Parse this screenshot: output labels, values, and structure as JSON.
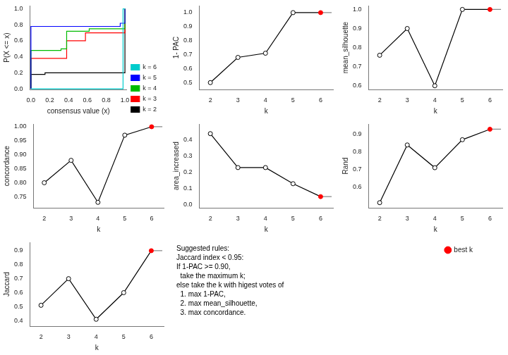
{
  "chart_data": [
    {
      "type": "line",
      "xlabel": "consensus value (x)",
      "ylabel": "P(X <= x)",
      "xlim": [
        -0.01,
        1.02
      ],
      "xticks": [
        {
          "value": 0.0,
          "label": "0.0"
        },
        0.2,
        0.4,
        0.6,
        0.8,
        {
          "value": 1.0,
          "label": "1.0"
        }
      ],
      "ylim": [
        -0.01,
        1.04
      ],
      "yticks": [
        {
          "value": 0.0,
          "label": "0.0"
        },
        0.2,
        0.4,
        0.6,
        0.8,
        {
          "value": 1.0,
          "label": "1.0"
        }
      ],
      "grid": false,
      "legend": "lower right",
      "series": [
        {
          "name": "k = 2",
          "color": "#000000",
          "line_style": "step",
          "marker": "none",
          "x": [
            0.0,
            0.0,
            0.15,
            0.15,
            1.0,
            1.0
          ],
          "values": [
            0.0,
            0.18,
            0.18,
            0.2,
            0.2,
            1.0
          ]
        },
        {
          "name": "k = 3",
          "color": "#FF0000",
          "line_style": "step",
          "marker": "none",
          "x": [
            0.0,
            0.0,
            0.38,
            0.38,
            0.58,
            0.58,
            1.0,
            1.0
          ],
          "values": [
            0.0,
            0.38,
            0.38,
            0.6,
            0.6,
            0.7,
            0.7,
            1.0
          ]
        },
        {
          "name": "k = 4",
          "color": "#00BB00",
          "line_style": "step",
          "marker": "none",
          "x": [
            0.0,
            0.0,
            0.32,
            0.32,
            0.38,
            0.38,
            0.62,
            0.62,
            1.0,
            1.0
          ],
          "values": [
            0.0,
            0.48,
            0.48,
            0.5,
            0.5,
            0.72,
            0.72,
            0.75,
            0.75,
            1.0
          ]
        },
        {
          "name": "k = 5",
          "color": "#0000FF",
          "line_style": "step",
          "marker": "none",
          "x": [
            0.0,
            0.0,
            0.0,
            0.95,
            0.95,
            1.0,
            1.0,
            1.0
          ],
          "values": [
            0.0,
            0.0,
            0.78,
            0.78,
            0.82,
            0.82,
            1.0,
            1.0
          ]
        },
        {
          "name": "k = 6",
          "color": "#00CCCC",
          "line_style": "step",
          "marker": "none",
          "x": [
            0.0,
            0.0,
            0.0,
            0.98,
            0.98,
            1.0,
            1.0,
            1.0
          ],
          "values": [
            0.0,
            0.0,
            0.0,
            0.0,
            1.0,
            1.0,
            1.0,
            1.0
          ]
        }
      ]
    },
    {
      "type": "line",
      "xlabel": "k",
      "ylabel": "1- PAC",
      "xlim": [
        1.6,
        6.45
      ],
      "xticks": [
        2,
        3,
        4,
        5,
        6
      ],
      "ylim": [
        0.45,
        1.05
      ],
      "yticks": [
        0.5,
        0.6,
        0.7,
        0.8,
        0.9,
        {
          "value": 1.0,
          "label": "1.0"
        }
      ],
      "grid": false,
      "series": [
        {
          "color": "#888888",
          "marker": "none",
          "x": [
            6,
            6.4
          ],
          "values": [
            1.0,
            1.0
          ]
        },
        {
          "color": "#000000",
          "marker": "circle",
          "colors": [
            "#000000",
            "#000000",
            "#000000",
            "#000000",
            "#FF0000"
          ],
          "x": [
            2,
            3,
            4,
            5,
            6
          ],
          "values": [
            0.5,
            0.68,
            0.71,
            1.0,
            1.0
          ]
        }
      ]
    },
    {
      "type": "line",
      "xlabel": "k",
      "ylabel": "mean_silhouette",
      "xlim": [
        1.6,
        6.45
      ],
      "xticks": [
        2,
        3,
        4,
        5,
        6
      ],
      "ylim": [
        0.58,
        1.02
      ],
      "yticks": [
        0.6,
        0.7,
        0.8,
        0.9,
        {
          "value": 1.0,
          "label": "1.0"
        }
      ],
      "grid": false,
      "series": [
        {
          "color": "#888888",
          "marker": "none",
          "x": [
            6,
            6.4
          ],
          "values": [
            1.0,
            1.0
          ]
        },
        {
          "color": "#000000",
          "marker": "circle",
          "colors": [
            "#000000",
            "#000000",
            "#000000",
            "#000000",
            "#FF0000"
          ],
          "x": [
            2,
            3,
            4,
            5,
            6
          ],
          "values": [
            0.76,
            0.9,
            0.6,
            1.0,
            1.0
          ]
        }
      ]
    },
    {
      "type": "line",
      "xlabel": "k",
      "ylabel": "concordance",
      "xlim": [
        1.6,
        6.45
      ],
      "xticks": [
        2,
        3,
        4,
        5,
        6
      ],
      "ylim": [
        0.71,
        1.01
      ],
      "yticks": [
        0.75,
        {
          "value": 0.8,
          "label": "0.80"
        },
        0.85,
        {
          "value": 0.9,
          "label": "0.90"
        },
        0.95,
        {
          "value": 1.0,
          "label": "1.00"
        }
      ],
      "grid": false,
      "series": [
        {
          "color": "#888888",
          "marker": "none",
          "x": [
            6,
            6.4
          ],
          "values": [
            1.0,
            1.0
          ]
        },
        {
          "color": "#000000",
          "marker": "circle",
          "colors": [
            "#000000",
            "#000000",
            "#000000",
            "#000000",
            "#FF0000"
          ],
          "x": [
            2,
            3,
            4,
            5,
            6
          ],
          "values": [
            0.8,
            0.88,
            0.73,
            0.97,
            1.0
          ]
        }
      ]
    },
    {
      "type": "line",
      "xlabel": "k",
      "ylabel": "area_increased",
      "xlim": [
        1.6,
        6.45
      ],
      "xticks": [
        2,
        3,
        4,
        5,
        6
      ],
      "ylim": [
        -0.02,
        0.5
      ],
      "yticks": [
        {
          "value": 0.0,
          "label": "0.0"
        },
        0.1,
        0.2,
        0.3,
        0.4
      ],
      "grid": false,
      "series": [
        {
          "color": "#888888",
          "marker": "none",
          "x": [
            6,
            6.4
          ],
          "values": [
            0.05,
            0.05
          ]
        },
        {
          "color": "#000000",
          "marker": "circle",
          "colors": [
            "#000000",
            "#000000",
            "#000000",
            "#000000",
            "#FF0000"
          ],
          "x": [
            2,
            3,
            4,
            5,
            6
          ],
          "values": [
            0.44,
            0.23,
            0.23,
            0.13,
            0.05
          ]
        }
      ]
    },
    {
      "type": "line",
      "xlabel": "k",
      "ylabel": "Rand",
      "xlim": [
        1.6,
        6.45
      ],
      "xticks": [
        2,
        3,
        4,
        5,
        6
      ],
      "ylim": [
        0.48,
        0.96
      ],
      "yticks": [
        0.6,
        0.7,
        0.8,
        0.9
      ],
      "grid": false,
      "series": [
        {
          "color": "#888888",
          "marker": "none",
          "x": [
            6,
            6.4
          ],
          "values": [
            0.93,
            0.93
          ]
        },
        {
          "color": "#000000",
          "marker": "circle",
          "colors": [
            "#000000",
            "#000000",
            "#000000",
            "#000000",
            "#FF0000"
          ],
          "x": [
            2,
            3,
            4,
            5,
            6
          ],
          "values": [
            0.51,
            0.84,
            0.71,
            0.87,
            0.93
          ]
        }
      ]
    },
    {
      "type": "line",
      "xlabel": "k",
      "ylabel": "Jaccard",
      "xlim": [
        1.6,
        6.45
      ],
      "xticks": [
        2,
        3,
        4,
        5,
        6
      ],
      "ylim": [
        0.36,
        0.96
      ],
      "yticks": [
        0.4,
        0.5,
        0.6,
        0.7,
        0.8,
        0.9
      ],
      "grid": false,
      "series": [
        {
          "color": "#888888",
          "marker": "none",
          "x": [
            6,
            6.4
          ],
          "values": [
            0.9,
            0.9
          ]
        },
        {
          "color": "#000000",
          "marker": "circle",
          "colors": [
            "#000000",
            "#000000",
            "#000000",
            "#000000",
            "#FF0000"
          ],
          "x": [
            2,
            3,
            4,
            5,
            6
          ],
          "values": [
            0.51,
            0.7,
            0.41,
            0.6,
            0.9
          ]
        }
      ]
    },
    {
      "type": "text",
      "annotations": [
        "Suggested rules:\nJaccard index < 0.95:\nIf 1-PAC >= 0.90,\n  take the maximum k;\nelse take the k with higest votes of\n  1. max 1-PAC,\n  2. max mean_silhouette,\n  3. max concordance."
      ],
      "legend": "upper right",
      "series": [
        {
          "name": "best k",
          "color": "#FF0000",
          "marker": "circle"
        }
      ]
    }
  ]
}
